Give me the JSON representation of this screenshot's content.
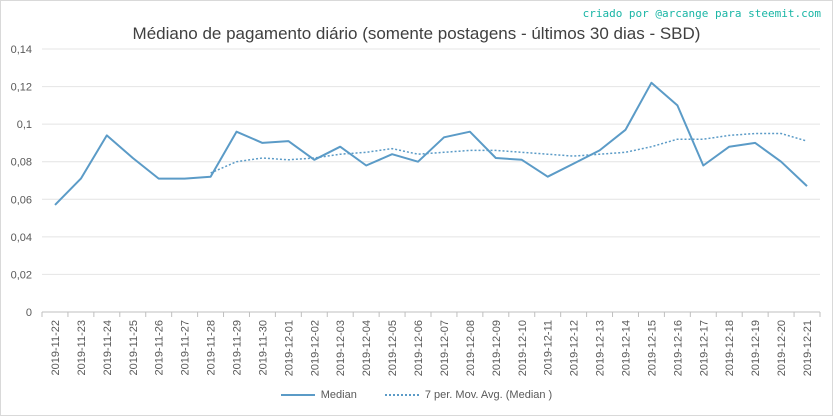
{
  "credit": "criado por @arcange para steemit.com",
  "chart_data": {
    "type": "line",
    "title": "Médiano de pagamento diário (somente postagens - últimos 30 dias - SBD)",
    "xlabel": "",
    "ylabel": "",
    "ylim": [
      0,
      0.14
    ],
    "yticks": [
      "0",
      "0,02",
      "0,04",
      "0,06",
      "0,08",
      "0,1",
      "0,12",
      "0,14"
    ],
    "grid": true,
    "legend_position": "bottom",
    "categories": [
      "2019-11-22",
      "2019-11-23",
      "2019-11-24",
      "2019-11-25",
      "2019-11-26",
      "2019-11-27",
      "2019-11-28",
      "2019-11-29",
      "2019-11-30",
      "2019-12-01",
      "2019-12-02",
      "2019-12-03",
      "2019-12-04",
      "2019-12-05",
      "2019-12-06",
      "2019-12-07",
      "2019-12-08",
      "2019-12-09",
      "2019-12-10",
      "2019-12-11",
      "2019-12-12",
      "2019-12-13",
      "2019-12-14",
      "2019-12-15",
      "2019-12-16",
      "2019-12-17",
      "2019-12-18",
      "2019-12-19",
      "2019-12-20",
      "2019-12-21"
    ],
    "series": [
      {
        "name": "Median",
        "style": "solid",
        "color": "#5b9bc7",
        "values": [
          0.057,
          0.071,
          0.094,
          0.082,
          0.071,
          0.071,
          0.072,
          0.096,
          0.09,
          0.091,
          0.081,
          0.088,
          0.078,
          0.084,
          0.08,
          0.093,
          0.096,
          0.082,
          0.081,
          0.072,
          0.079,
          0.086,
          0.097,
          0.122,
          0.11,
          0.078,
          0.088,
          0.09,
          0.08,
          0.067
        ]
      },
      {
        "name": "7 per. Mov. Avg. (Median )",
        "style": "dotted",
        "color": "#5b9bc7",
        "values": [
          null,
          null,
          null,
          null,
          null,
          null,
          0.074,
          0.08,
          0.082,
          0.081,
          0.082,
          0.084,
          0.085,
          0.087,
          0.084,
          0.085,
          0.086,
          0.086,
          0.085,
          0.084,
          0.083,
          0.084,
          0.085,
          0.088,
          0.092,
          0.092,
          0.094,
          0.095,
          0.095,
          0.091
        ]
      }
    ]
  }
}
